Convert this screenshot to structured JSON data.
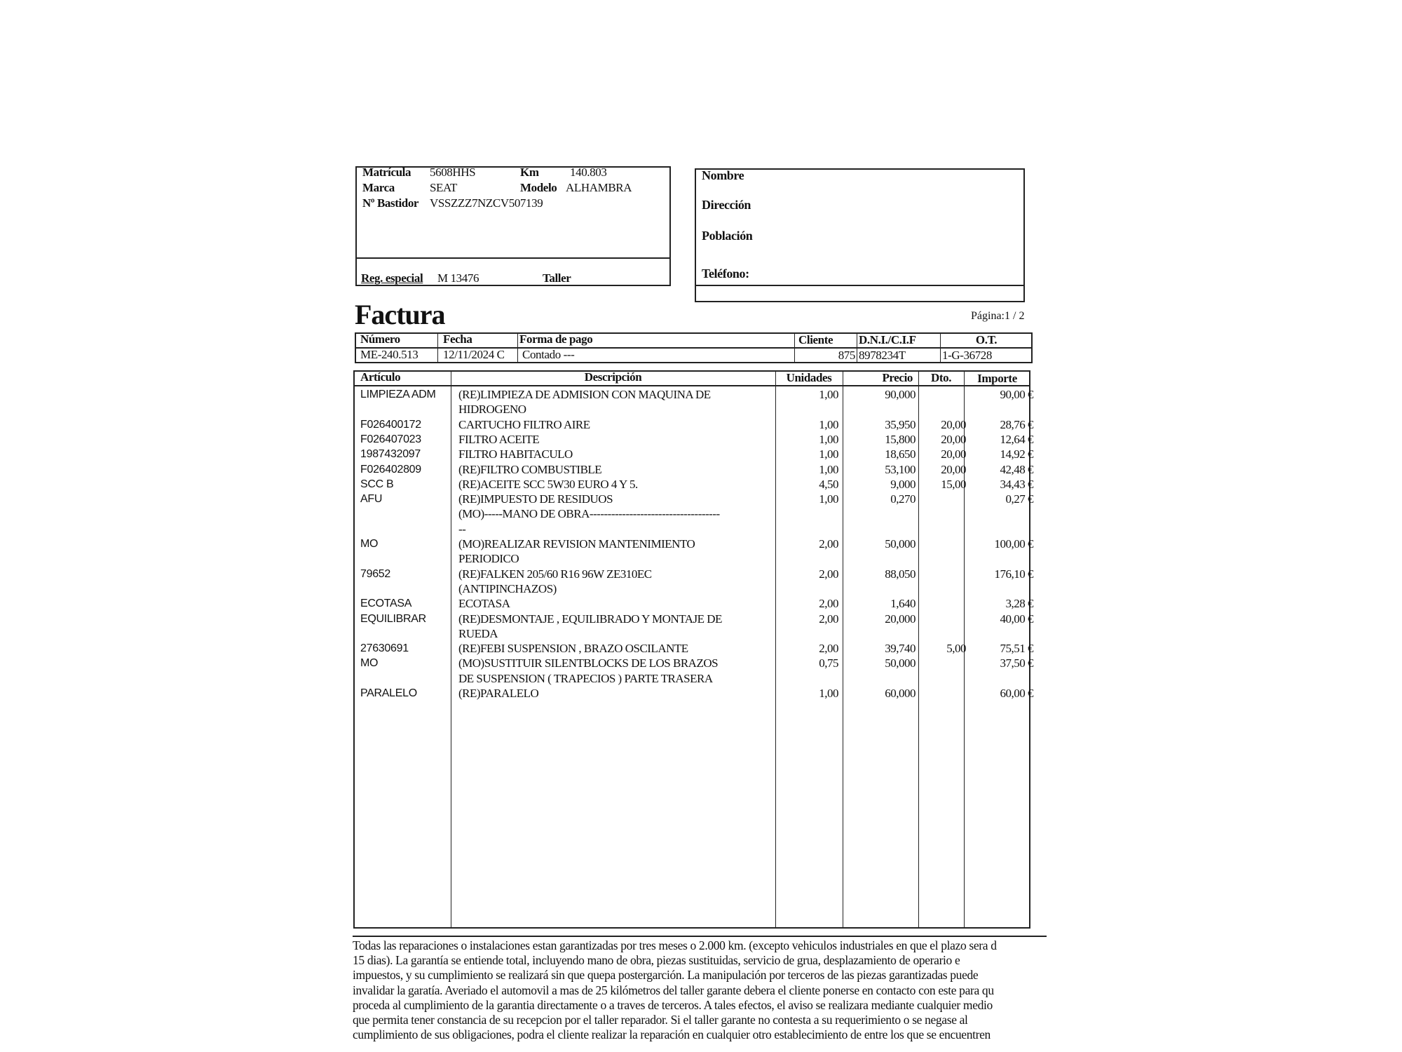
{
  "vehicle": {
    "matricula_label": "Matrícula",
    "matricula": "5608HHS",
    "km_label": "Km",
    "km": "140.803",
    "marca_label": "Marca",
    "marca": "SEAT",
    "modelo_label": "Modelo",
    "modelo": "ALHAMBRA",
    "bastidor_label": "Nº Bastidor",
    "bastidor": "VSSZZZ7NZCV507139",
    "reg_label": "Reg. especial",
    "reg": "M 13476",
    "taller_label": "Taller"
  },
  "client": {
    "nombre_label": "Nombre",
    "direccion_label": "Dirección",
    "poblacion_label": "Población",
    "telefono_label": "Teléfono:"
  },
  "title": "Factura",
  "pagina": "Página:1 / 2",
  "invoice_header": {
    "columns": [
      "Número",
      "Fecha",
      "Forma de pago",
      "Cliente",
      "D.N.I./C.I.F",
      "O.T."
    ],
    "values": [
      "ME-240.513",
      "12/11/2024  C",
      "Contado ---",
      "875",
      "8978234T",
      "1-G-36728"
    ]
  },
  "items_header": [
    "Artículo",
    "Descripción",
    "Unidades",
    "Precio",
    "Dto.",
    "Importe"
  ],
  "items": [
    {
      "articulo": "LIMPIEZA ADM",
      "descripcion": "(RE)LIMPIEZA DE ADMISION CON MAQUINA DE\nHIDROGENO",
      "unidades": "1,00",
      "precio": "90,000",
      "dto": "",
      "importe": "90,00 €"
    },
    {
      "articulo": "F026400172",
      "descripcion": "CARTUCHO FILTRO AIRE",
      "unidades": "1,00",
      "precio": "35,950",
      "dto": "20,00",
      "importe": "28,76 €"
    },
    {
      "articulo": "F026407023",
      "descripcion": "FILTRO ACEITE",
      "unidades": "1,00",
      "precio": "15,800",
      "dto": "20,00",
      "importe": "12,64 €"
    },
    {
      "articulo": "1987432097",
      "descripcion": "FILTRO HABITACULO",
      "unidades": "1,00",
      "precio": "18,650",
      "dto": "20,00",
      "importe": "14,92 €"
    },
    {
      "articulo": "F026402809",
      "descripcion": "(RE)FILTRO COMBUSTIBLE",
      "unidades": "1,00",
      "precio": "53,100",
      "dto": "20,00",
      "importe": "42,48 €"
    },
    {
      "articulo": "SCC B",
      "descripcion": "(RE)ACEITE SCC 5W30  EURO 4 Y 5.",
      "unidades": "4,50",
      "precio": "9,000",
      "dto": "15,00",
      "importe": "34,43 €"
    },
    {
      "articulo": "AFU",
      "descripcion": "(RE)IMPUESTO DE RESIDUOS",
      "unidades": "1,00",
      "precio": "0,270",
      "dto": "",
      "importe": "0,27 €"
    },
    {
      "articulo": "",
      "descripcion": "(MO)-----MANO DE OBRA------------------------------------\n--",
      "unidades": "",
      "precio": "",
      "dto": "",
      "importe": ""
    },
    {
      "articulo": "MO",
      "descripcion": "(MO)REALIZAR REVISION MANTENIMIENTO\nPERIODICO",
      "unidades": "2,00",
      "precio": "50,000",
      "dto": "",
      "importe": "100,00 €"
    },
    {
      "articulo": "79652",
      "descripcion": "(RE)FALKEN 205/60  R16 96W ZE310EC\n(ANTIPINCHAZOS)",
      "unidades": "2,00",
      "precio": "88,050",
      "dto": "",
      "importe": "176,10 €"
    },
    {
      "articulo": "ECOTASA",
      "descripcion": "ECOTASA",
      "unidades": "2,00",
      "precio": "1,640",
      "dto": "",
      "importe": "3,28 €"
    },
    {
      "articulo": "EQUILIBRAR",
      "descripcion": "(RE)DESMONTAJE , EQUILIBRADO Y MONTAJE DE\nRUEDA",
      "unidades": "2,00",
      "precio": "20,000",
      "dto": "",
      "importe": "40,00 €"
    },
    {
      "articulo": "27630691",
      "descripcion": "(RE)FEBI SUSPENSION , BRAZO OSCILANTE",
      "unidades": "2,00",
      "precio": "39,740",
      "dto": "5,00",
      "importe": "75,51 €"
    },
    {
      "articulo": "MO",
      "descripcion": "(MO)SUSTITUIR SILENTBLOCKS DE LOS BRAZOS\nDE SUSPENSION ( TRAPECIOS ) PARTE TRASERA",
      "unidades": "0,75",
      "precio": "50,000",
      "dto": "",
      "importe": "37,50 €"
    },
    {
      "articulo": "PARALELO",
      "descripcion": "(RE)PARALELO",
      "unidades": "1,00",
      "precio": "60,000",
      "dto": "",
      "importe": "60,00 €"
    }
  ],
  "footer_lines": [
    "Todas las reparaciones o instalaciones estan garantizadas por tres meses o 2.000 km. (excepto vehiculos industriales en que el plazo sera d",
    "15 dias). La garantía se entiende total, incluyendo mano de obra, piezas sustituidas, servicio de grua, desplazamiento de operario e",
    "impuestos, y su cumplimiento se realizará sin que quepa postergarción. La manipulación por terceros de las piezas garantizadas puede",
    "invalidar la garatía. Averiado el automovil a mas de 25 kilómetros del taller garante debera el cliente ponerse en contacto con este para qu",
    "proceda al cumplimiento de la garantia directamente o a traves de terceros. A tales efectos, el aviso se realizara mediante cualquier medio",
    "que permita tener constancia de su recepcion por el taller reparador. Si el taller garante no contesta a su requerimiento o se negase al",
    "cumplimiento de sus obligaciones, podra el cliente realizar la reparación en cualquier otro establecimiento de entre los que se encuentren"
  ]
}
